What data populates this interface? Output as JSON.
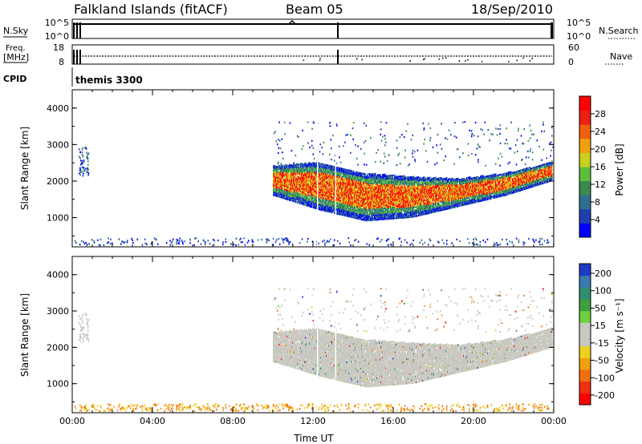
{
  "header": {
    "title": "Falkland Islands (fitACF)",
    "beam": "Beam 05",
    "date": "18/Sep/2010"
  },
  "top_panels": {
    "nsky": {
      "label": "N.Sky",
      "left_ticks": [
        "10^5",
        "10^0"
      ],
      "right_ticks": [
        "10^5",
        "10^0"
      ],
      "right_label": "N.Search"
    },
    "freq": {
      "label_line1": "Freq.",
      "label_line2": "[MHz]",
      "left_ticks": [
        "18",
        "8"
      ],
      "right_ticks": [
        "60",
        "0"
      ],
      "right_label": "Nave"
    },
    "cpid": {
      "label": "CPID",
      "value": "themis 3300"
    }
  },
  "chart_data": [
    {
      "type": "heatmap",
      "panel": "power",
      "ylabel": "Slant Range [km]",
      "yticks": [
        "1000",
        "2000",
        "3000",
        "4000"
      ],
      "ylim": [
        200,
        4500
      ],
      "xticks": [
        "00:00",
        "04:00",
        "08:00",
        "12:00",
        "16:00",
        "20:00",
        "00:00"
      ],
      "xlim_hours": [
        0,
        24
      ],
      "colorbar": {
        "label": "Power [dB]",
        "tick_labels": [
          "4",
          "8",
          "12",
          "16",
          "20",
          "24",
          "28"
        ],
        "colors": [
          "#0000ff",
          "#1d3fb0",
          "#2f6f8f",
          "#3a8a4f",
          "#5cbf3a",
          "#c8d020",
          "#f0a010",
          "#f06010",
          "#ee2010",
          "#ff0000"
        ]
      },
      "echo_region": {
        "x_hours": [
          10.0,
          23.9
        ],
        "range_km_top": [
          2400,
          2500,
          2200,
          2100,
          2050,
          2200,
          2500
        ],
        "range_km_bottom": [
          1600,
          1200,
          900,
          1000,
          1300,
          1600,
          2000
        ]
      }
    },
    {
      "type": "heatmap",
      "panel": "velocity",
      "ylabel": "Slant Range [km]",
      "yticks": [
        "1000",
        "2000",
        "3000",
        "4000"
      ],
      "ylim": [
        200,
        4500
      ],
      "xticks": [
        "00:00",
        "04:00",
        "08:00",
        "12:00",
        "16:00",
        "20:00",
        "00:00"
      ],
      "xlabel": "Time UT",
      "colorbar": {
        "label": "Velocity [m s⁻¹]",
        "tick_labels": [
          "200",
          "100",
          "50",
          "15",
          "-15",
          "-50",
          "-100",
          "-200"
        ],
        "colors": [
          "#1e3cc8",
          "#3a7ab0",
          "#2f8f70",
          "#40a040",
          "#6cd040",
          "#c8c8c0",
          "#c8c8c0",
          "#f0d020",
          "#f0a010",
          "#f07010",
          "#ee3010",
          "#ff0000"
        ]
      }
    }
  ]
}
